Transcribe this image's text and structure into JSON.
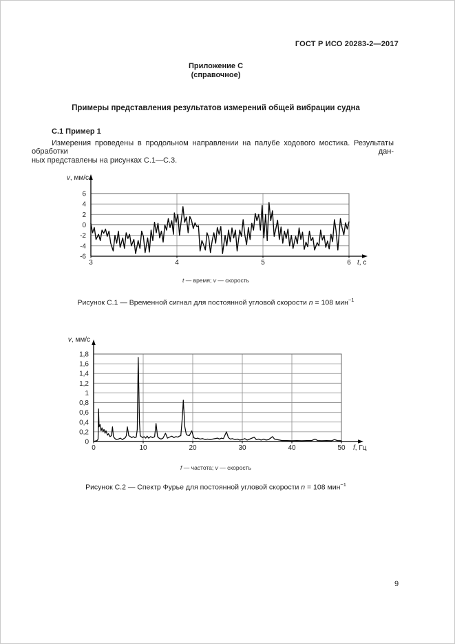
{
  "style": {
    "paper": "#ffffff",
    "text": "#1c1c1c",
    "grid": "#8a8a8a",
    "signal_line": "#0a0a0a"
  },
  "header": {
    "doc_code": "ГОСТ Р ИСО 20283-2—2017"
  },
  "appendix": {
    "label": "Приложение С",
    "kind": "(справочное)",
    "title": "Примеры представления результатов измерений общей вибрации судна"
  },
  "section": {
    "heading": "С.1 Пример 1",
    "paragraph_line1": "Измерения проведены в продольном направлении на палубе ходового мостика. Результаты обработки дан-",
    "paragraph_line2": "ных представлены на рисунках С.1—С.3."
  },
  "figure1": {
    "legend": {
      "sym1": "t",
      "text1": " — время; ",
      "sym2": "v",
      "text2": " — скорость"
    },
    "caption": {
      "text": "Рисунок С.1 — Временной сигнал для постоянной угловой скорости ",
      "var": "n",
      "eq": " = 108 мин",
      "sup": "−1"
    }
  },
  "figure2": {
    "legend": {
      "sym1": "f",
      "text1": " — частота; ",
      "sym2": "v",
      "text2": " — скорость"
    },
    "caption": {
      "text": "Рисунок С.2 — Спектр Фурье для постоянной угловой скорости ",
      "var": "n",
      "eq": " = 108 мин",
      "sup": "−1"
    }
  },
  "footer": {
    "page_number": "9"
  },
  "chart_data": [
    {
      "type": "line",
      "title": "Рисунок С.1 — Временной сигнал для постоянной угловой скорости n = 108 мин⁻¹",
      "xlabel_var": "t",
      "xlabel_rest": ", с",
      "ylabel_var": "v",
      "ylabel_rest": ", мм/с",
      "xlim": [
        3,
        6
      ],
      "ylim": [
        -6,
        6
      ],
      "xticks": [
        3,
        4,
        5,
        6
      ],
      "xtick_labels": [
        "3",
        "4",
        "5",
        "6"
      ],
      "yticks": [
        6,
        4,
        2,
        0,
        -2,
        -4,
        -6
      ],
      "ytick_labels": [
        "6",
        "4",
        "2",
        "0",
        "-2",
        "-4",
        "-6"
      ],
      "grid": true,
      "legend_position": "none",
      "points": [
        [
          3.0,
          0.3
        ],
        [
          3.02,
          -1.5
        ],
        [
          3.04,
          -0.5
        ],
        [
          3.06,
          -2.8
        ],
        [
          3.09,
          -1.8
        ],
        [
          3.11,
          -3.0
        ],
        [
          3.13,
          -1.0
        ],
        [
          3.15,
          -1.6
        ],
        [
          3.17,
          -0.8
        ],
        [
          3.19,
          -2.2
        ],
        [
          3.21,
          -1.2
        ],
        [
          3.23,
          -3.5
        ],
        [
          3.26,
          -5.0
        ],
        [
          3.28,
          -2.0
        ],
        [
          3.3,
          -3.5
        ],
        [
          3.32,
          -1.2
        ],
        [
          3.34,
          -4.3
        ],
        [
          3.37,
          -2.5
        ],
        [
          3.39,
          -4.5
        ],
        [
          3.41,
          -1.5
        ],
        [
          3.43,
          -2.6
        ],
        [
          3.45,
          -1.8
        ],
        [
          3.47,
          -4.0
        ],
        [
          3.5,
          -2.8
        ],
        [
          3.52,
          -5.5
        ],
        [
          3.55,
          -3.0
        ],
        [
          3.57,
          -4.5
        ],
        [
          3.59,
          -1.2
        ],
        [
          3.61,
          -2.2
        ],
        [
          3.63,
          -5.3
        ],
        [
          3.66,
          -2.5
        ],
        [
          3.68,
          -5.2
        ],
        [
          3.7,
          -1.0
        ],
        [
          3.72,
          -3.0
        ],
        [
          3.74,
          0.5
        ],
        [
          3.76,
          -1.5
        ],
        [
          3.78,
          0.3
        ],
        [
          3.8,
          -2.5
        ],
        [
          3.82,
          -1.2
        ],
        [
          3.84,
          -3.3
        ],
        [
          3.86,
          0.0
        ],
        [
          3.88,
          -1.0
        ],
        [
          3.9,
          1.2
        ],
        [
          3.92,
          -0.5
        ],
        [
          3.94,
          0.8
        ],
        [
          3.96,
          -1.8
        ],
        [
          3.97,
          2.3
        ],
        [
          3.99,
          0.5
        ],
        [
          4.01,
          2.0
        ],
        [
          4.03,
          -2.0
        ],
        [
          4.05,
          0.7
        ],
        [
          4.07,
          3.5
        ],
        [
          4.09,
          0.5
        ],
        [
          4.11,
          1.5
        ],
        [
          4.13,
          -1.5
        ],
        [
          4.15,
          1.6
        ],
        [
          4.17,
          0.9
        ],
        [
          4.19,
          -0.7
        ],
        [
          4.21,
          0.4
        ],
        [
          4.23,
          -0.3
        ],
        [
          4.25,
          -0.2
        ],
        [
          4.27,
          -5.0
        ],
        [
          4.29,
          -3.0
        ],
        [
          4.31,
          -3.8
        ],
        [
          4.33,
          -4.8
        ],
        [
          4.35,
          -1.5
        ],
        [
          4.37,
          -2.5
        ],
        [
          4.39,
          -5.3
        ],
        [
          4.41,
          -3.0
        ],
        [
          4.43,
          -1.5
        ],
        [
          4.45,
          -3.5
        ],
        [
          4.47,
          -0.5
        ],
        [
          4.49,
          -1.8
        ],
        [
          4.51,
          -0.3
        ],
        [
          4.53,
          -5.5
        ],
        [
          4.56,
          -2.0
        ],
        [
          4.58,
          -4.0
        ],
        [
          4.6,
          -1.0
        ],
        [
          4.62,
          -3.2
        ],
        [
          4.64,
          -0.6
        ],
        [
          4.66,
          -2.5
        ],
        [
          4.68,
          -1.0
        ],
        [
          4.7,
          -5.0
        ],
        [
          4.73,
          -1.0
        ],
        [
          4.75,
          -2.2
        ],
        [
          4.77,
          1.0
        ],
        [
          4.79,
          -2.0
        ],
        [
          4.81,
          -3.8
        ],
        [
          4.83,
          -0.5
        ],
        [
          4.85,
          -2.8
        ],
        [
          4.87,
          0.3
        ],
        [
          4.89,
          -1.0
        ],
        [
          4.91,
          2.2
        ],
        [
          4.93,
          0.8
        ],
        [
          4.95,
          2.0
        ],
        [
          4.97,
          -1.0
        ],
        [
          4.99,
          3.7
        ],
        [
          5.01,
          -2.5
        ],
        [
          5.03,
          2.0
        ],
        [
          5.05,
          -3.0
        ],
        [
          5.07,
          4.3
        ],
        [
          5.09,
          0.8
        ],
        [
          5.11,
          2.7
        ],
        [
          5.13,
          -2.2
        ],
        [
          5.15,
          -0.7
        ],
        [
          5.17,
          0.9
        ],
        [
          5.19,
          -2.8
        ],
        [
          5.21,
          -0.4
        ],
        [
          5.23,
          -3.5
        ],
        [
          5.25,
          -1.2
        ],
        [
          5.27,
          -2.6
        ],
        [
          5.29,
          -0.8
        ],
        [
          5.31,
          -4.0
        ],
        [
          5.33,
          -2.0
        ],
        [
          5.35,
          -4.5
        ],
        [
          5.38,
          -2.2
        ],
        [
          5.4,
          -3.6
        ],
        [
          5.42,
          -0.6
        ],
        [
          5.44,
          -2.8
        ],
        [
          5.46,
          -1.4
        ],
        [
          5.48,
          -4.7
        ],
        [
          5.5,
          -3.3
        ],
        [
          5.52,
          -4.2
        ],
        [
          5.54,
          -1.2
        ],
        [
          5.56,
          -3.0
        ],
        [
          5.58,
          -2.4
        ],
        [
          5.6,
          -4.8
        ],
        [
          5.63,
          -3.4
        ],
        [
          5.65,
          -4.0
        ],
        [
          5.67,
          -1.0
        ],
        [
          5.69,
          -2.9
        ],
        [
          5.71,
          -2.0
        ],
        [
          5.73,
          -4.3
        ],
        [
          5.75,
          -3.1
        ],
        [
          5.77,
          -4.6
        ],
        [
          5.79,
          -1.8
        ],
        [
          5.81,
          -3.2
        ],
        [
          5.83,
          1.0
        ],
        [
          5.85,
          -1.1
        ],
        [
          5.87,
          -4.8
        ],
        [
          5.9,
          1.2
        ],
        [
          5.92,
          -0.6
        ],
        [
          5.94,
          -1.9
        ],
        [
          5.96,
          0.4
        ],
        [
          5.98,
          -0.8
        ],
        [
          6.0,
          0.6
        ]
      ]
    },
    {
      "type": "line",
      "title": "Рисунок С.2 — Спектр Фурье для постоянной угловой скорости n = 108 мин⁻¹",
      "xlabel_var": "f",
      "xlabel_rest": ", Гц",
      "ylabel_var": "v",
      "ylabel_rest": ", мм/с",
      "xlim": [
        0,
        50
      ],
      "ylim": [
        0,
        1.8
      ],
      "xticks": [
        0,
        10,
        20,
        30,
        40,
        50
      ],
      "xtick_labels": [
        "0",
        "10",
        "20",
        "30",
        "40",
        "50"
      ],
      "yticks": [
        1.8,
        1.6,
        1.4,
        1.2,
        1.0,
        0.8,
        0.6,
        0.4,
        0.2,
        0
      ],
      "ytick_labels": [
        "1,8",
        "1,6",
        "1,4",
        "1,2",
        "1",
        "0,8",
        "0,6",
        "0,4",
        "0,2",
        "0"
      ],
      "grid": true,
      "legend_position": "none",
      "points": [
        [
          0,
          0
        ],
        [
          0.3,
          0.01
        ],
        [
          0.7,
          0.02
        ],
        [
          0.9,
          0.05
        ],
        [
          1.0,
          0.67
        ],
        [
          1.1,
          0.3
        ],
        [
          1.3,
          0.35
        ],
        [
          1.5,
          0.22
        ],
        [
          1.7,
          0.28
        ],
        [
          1.9,
          0.2
        ],
        [
          2.1,
          0.25
        ],
        [
          2.3,
          0.17
        ],
        [
          2.5,
          0.22
        ],
        [
          2.8,
          0.13
        ],
        [
          3.0,
          0.16
        ],
        [
          3.3,
          0.1
        ],
        [
          3.6,
          0.12
        ],
        [
          3.8,
          0.3
        ],
        [
          4.0,
          0.1
        ],
        [
          4.3,
          0.06
        ],
        [
          4.6,
          0.04
        ],
        [
          5.0,
          0.05
        ],
        [
          5.4,
          0.07
        ],
        [
          5.8,
          0.04
        ],
        [
          6.1,
          0.06
        ],
        [
          6.4,
          0.08
        ],
        [
          6.6,
          0.12
        ],
        [
          6.8,
          0.3
        ],
        [
          7.1,
          0.12
        ],
        [
          7.4,
          0.1
        ],
        [
          7.7,
          0.08
        ],
        [
          8.0,
          0.1
        ],
        [
          8.3,
          0.08
        ],
        [
          8.6,
          0.09
        ],
        [
          8.8,
          0.25
        ],
        [
          9.0,
          1.73
        ],
        [
          9.25,
          0.4
        ],
        [
          9.4,
          0.12
        ],
        [
          9.6,
          0.1
        ],
        [
          9.9,
          0.08
        ],
        [
          10.2,
          0.1
        ],
        [
          10.5,
          0.07
        ],
        [
          10.8,
          0.11
        ],
        [
          11.1,
          0.07
        ],
        [
          11.5,
          0.1
        ],
        [
          11.9,
          0.08
        ],
        [
          12.3,
          0.1
        ],
        [
          12.6,
          0.37
        ],
        [
          12.9,
          0.1
        ],
        [
          13.2,
          0.07
        ],
        [
          13.6,
          0.05
        ],
        [
          14.0,
          0.07
        ],
        [
          14.5,
          0.17
        ],
        [
          14.9,
          0.07
        ],
        [
          15.3,
          0.09
        ],
        [
          15.8,
          0.11
        ],
        [
          16.2,
          0.08
        ],
        [
          16.6,
          0.1
        ],
        [
          17.0,
          0.09
        ],
        [
          17.3,
          0.11
        ],
        [
          17.6,
          0.12
        ],
        [
          17.9,
          0.5
        ],
        [
          18.1,
          0.85
        ],
        [
          18.4,
          0.3
        ],
        [
          18.7,
          0.15
        ],
        [
          18.9,
          0.13
        ],
        [
          19.3,
          0.12
        ],
        [
          19.8,
          0.22
        ],
        [
          20.2,
          0.08
        ],
        [
          20.6,
          0.06
        ],
        [
          21.0,
          0.07
        ],
        [
          21.5,
          0.05
        ],
        [
          22.0,
          0.06
        ],
        [
          22.5,
          0.04
        ],
        [
          23.0,
          0.05
        ],
        [
          23.5,
          0.04
        ],
        [
          24.0,
          0.05
        ],
        [
          24.5,
          0.06
        ],
        [
          25.0,
          0.07
        ],
        [
          25.4,
          0.05
        ],
        [
          25.8,
          0.07
        ],
        [
          26.2,
          0.06
        ],
        [
          26.8,
          0.2
        ],
        [
          27.2,
          0.08
        ],
        [
          27.6,
          0.05
        ],
        [
          28.0,
          0.06
        ],
        [
          28.5,
          0.04
        ],
        [
          29.0,
          0.05
        ],
        [
          29.5,
          0.03
        ],
        [
          30.0,
          0.04
        ],
        [
          30.5,
          0.06
        ],
        [
          31.0,
          0.03
        ],
        [
          31.5,
          0.05
        ],
        [
          32.4,
          0.09
        ],
        [
          32.8,
          0.04
        ],
        [
          33.3,
          0.05
        ],
        [
          33.8,
          0.03
        ],
        [
          34.3,
          0.05
        ],
        [
          34.8,
          0.03
        ],
        [
          35.3,
          0.04
        ],
        [
          36.1,
          0.1
        ],
        [
          36.5,
          0.05
        ],
        [
          37.0,
          0.04
        ],
        [
          37.5,
          0.03
        ],
        [
          38.0,
          0.02
        ],
        [
          39.0,
          0.02
        ],
        [
          40.0,
          0.015
        ],
        [
          41.0,
          0.02
        ],
        [
          42.0,
          0.015
        ],
        [
          43.0,
          0.02
        ],
        [
          44.0,
          0.02
        ],
        [
          44.7,
          0.05
        ],
        [
          45.2,
          0.02
        ],
        [
          46.0,
          0.015
        ],
        [
          47.0,
          0.02
        ],
        [
          48.0,
          0.015
        ],
        [
          48.6,
          0.04
        ],
        [
          49.2,
          0.02
        ],
        [
          50.0,
          0.015
        ]
      ]
    }
  ]
}
